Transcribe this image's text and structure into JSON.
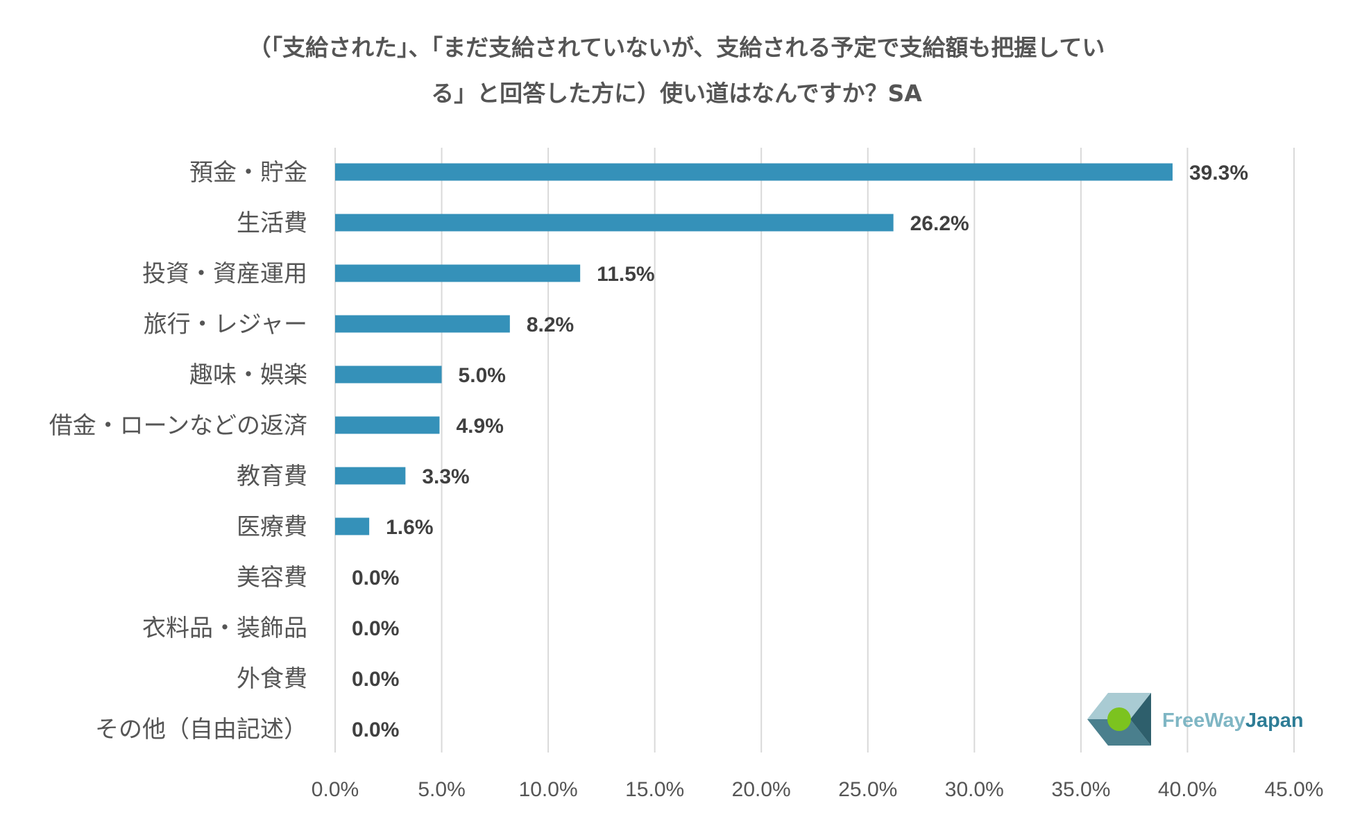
{
  "title_lines": [
    "（「支給された」、「まだ支給されていないが、支給される予定で支給額も把握してい",
    "る」と回答した方に）使い道はなんですか？SA"
  ],
  "chart_data": {
    "type": "bar",
    "orientation": "horizontal",
    "categories": [
      "預金・貯金",
      "生活費",
      "投資・資産運用",
      "旅行・レジャー",
      "趣味・娯楽",
      "借金・ローンなどの返済",
      "教育費",
      "医療費",
      "美容費",
      "衣料品・装飾品",
      "外食費",
      "その他（自由記述）"
    ],
    "values": [
      39.3,
      26.2,
      11.5,
      8.2,
      5.0,
      4.9,
      3.3,
      1.6,
      0.0,
      0.0,
      0.0,
      0.0
    ],
    "value_labels": [
      "39.3%",
      "26.2%",
      "11.5%",
      "8.2%",
      "5.0%",
      "4.9%",
      "3.3%",
      "1.6%",
      "0.0%",
      "0.0%",
      "0.0%",
      "0.0%"
    ],
    "xlim": [
      0,
      45
    ],
    "x_ticks": [
      0,
      5,
      10,
      15,
      20,
      25,
      30,
      35,
      40,
      45
    ],
    "x_tick_labels": [
      "0.0%",
      "5.0%",
      "10.0%",
      "15.0%",
      "20.0%",
      "25.0%",
      "30.0%",
      "35.0%",
      "40.0%",
      "45.0%"
    ],
    "grid": "vertical",
    "bar_color": "#3591b9"
  },
  "logo": {
    "text_part1": "FreeWay",
    "text_part2": "Japan",
    "color_part1": "#7fb6c4",
    "color_part2": "#2e7d96"
  }
}
